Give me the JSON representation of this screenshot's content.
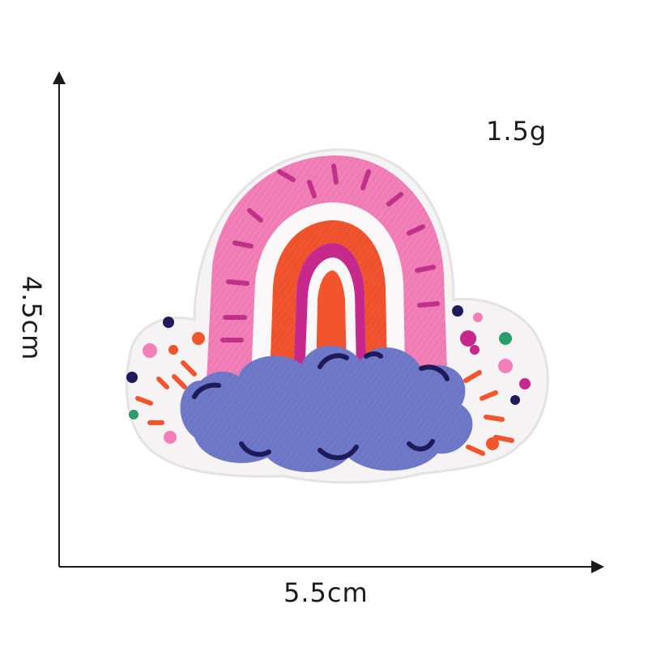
{
  "product": {
    "name_icon": "rainbow-cloud-embroidered-patch",
    "weight": "1.5g",
    "width": "5.5cm",
    "height": "4.5cm"
  },
  "colors": {
    "background": "#ffffff",
    "axis": "#1a1a1a",
    "patch_base": "#f5f3f4",
    "pink_arc": "#f27fb8",
    "pink_stitch": "#c1318a",
    "orange_arc": "#f2542d",
    "magenta_arc": "#c7288c",
    "cloud": "#6f79c9",
    "cloud_shadow": "#5560b0",
    "cloud_stitch": "#1f1a5a"
  }
}
